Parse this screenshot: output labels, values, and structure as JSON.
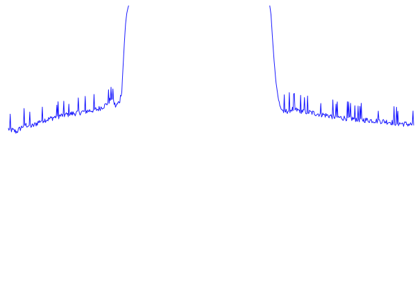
{
  "chart_data": {
    "type": "line",
    "title": "",
    "xlabel": "",
    "ylabel": "",
    "grid": false,
    "axes_visible": false,
    "legend": "none",
    "xlim": [
      0,
      1
    ],
    "ylim": [
      0,
      1
    ],
    "series": [
      {
        "color": "#1a1aff",
        "segments": [
          {
            "x": [
              0.0,
              0.02,
              0.04,
              0.06,
              0.08,
              0.1,
              0.12,
              0.14,
              0.16,
              0.18,
              0.2,
              0.22,
              0.24,
              0.255,
              0.265,
              0.275,
              0.28,
              0.283,
              0.286,
              0.289,
              0.292,
              0.295,
              0.297
            ],
            "y": [
              0.56,
              0.55,
              0.575,
              0.57,
              0.59,
              0.595,
              0.605,
              0.61,
              0.615,
              0.62,
              0.625,
              0.63,
              0.645,
              0.67,
              0.64,
              0.66,
              0.7,
              0.78,
              0.86,
              0.93,
              0.97,
              0.99,
              1.0
            ]
          },
          {
            "x": [
              0.645,
              0.648,
              0.652,
              0.656,
              0.66,
              0.665,
              0.67,
              0.68,
              0.7,
              0.72,
              0.74,
              0.76,
              0.78,
              0.8,
              0.82,
              0.84,
              0.86,
              0.88,
              0.9,
              0.92,
              0.94,
              0.96,
              0.98,
              1.0
            ],
            "y": [
              1.0,
              0.97,
              0.88,
              0.8,
              0.73,
              0.68,
              0.64,
              0.62,
              0.63,
              0.625,
              0.62,
              0.615,
              0.61,
              0.605,
              0.6,
              0.598,
              0.595,
              0.592,
              0.59,
              0.588,
              0.585,
              0.58,
              0.578,
              0.575
            ]
          }
        ]
      }
    ]
  }
}
